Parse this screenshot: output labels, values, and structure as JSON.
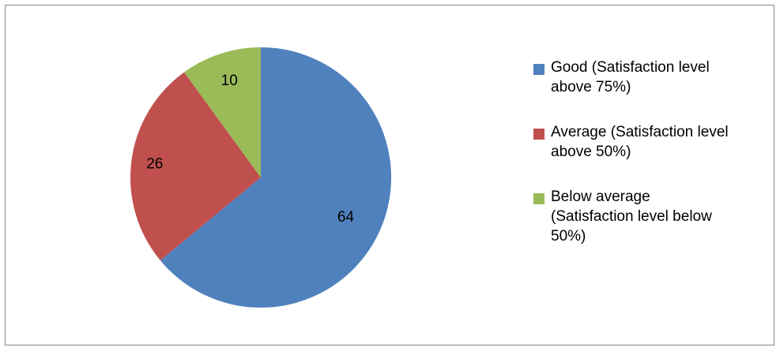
{
  "chart_data": {
    "type": "pie",
    "title": "",
    "categories": [
      "Good (Satisfaction level above 75%)",
      "Average (Satisfaction level above 50%)",
      "Below average (Satisfaction level below 50%)"
    ],
    "values": [
      64,
      26,
      10
    ],
    "data_labels": [
      "64",
      "26",
      "10"
    ],
    "colors": [
      "#4f81bd",
      "#c0504d",
      "#9bbb59"
    ],
    "legend_position": "right",
    "start_angle": "12 o'clock",
    "direction": "clockwise"
  },
  "legend": {
    "items": [
      {
        "line1": "Good (Satisfaction level",
        "line2": "above 75%)",
        "line3": "",
        "color": "#4f81bd"
      },
      {
        "line1": "Average (Satisfaction level",
        "line2": "above 50%)",
        "line3": "",
        "color": "#c0504d"
      },
      {
        "line1": "Below average",
        "line2": "(Satisfaction level below",
        "line3": "50%)",
        "color": "#9bbb59"
      }
    ]
  },
  "style": {
    "border_color": "#868686",
    "background": "#ffffff",
    "label_color": "#000000"
  }
}
